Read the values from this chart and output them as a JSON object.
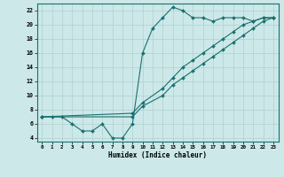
{
  "xlabel": "Humidex (Indice chaleur)",
  "bg_color": "#cce8e8",
  "grid_color": "#b0d0d0",
  "line_color": "#1a7070",
  "xlim": [
    -0.5,
    23.5
  ],
  "ylim": [
    3.5,
    23.0
  ],
  "xticks": [
    0,
    1,
    2,
    3,
    4,
    5,
    6,
    7,
    8,
    9,
    10,
    11,
    12,
    13,
    14,
    15,
    16,
    17,
    18,
    19,
    20,
    21,
    22,
    23
  ],
  "yticks": [
    4,
    6,
    8,
    10,
    12,
    14,
    16,
    18,
    20,
    22
  ],
  "curve1_x": [
    0,
    1,
    2,
    3,
    4,
    5,
    6,
    7,
    8,
    9,
    10,
    11,
    12,
    13,
    14,
    15,
    16,
    17,
    18,
    19,
    20,
    21,
    22,
    23
  ],
  "curve1_y": [
    7.0,
    7.0,
    7.0,
    6.0,
    5.0,
    5.0,
    6.0,
    4.0,
    4.0,
    6.0,
    16.0,
    19.5,
    21.0,
    22.5,
    22.0,
    21.0,
    21.0,
    20.5,
    21.0,
    21.0,
    21.0,
    20.5,
    21.0,
    21.0
  ],
  "curve2_x": [
    0,
    9,
    10,
    12,
    13,
    14,
    15,
    16,
    17,
    18,
    19,
    20,
    21,
    22,
    23
  ],
  "curve2_y": [
    7.0,
    7.5,
    9.0,
    11.0,
    12.5,
    14.0,
    15.0,
    16.0,
    17.0,
    18.0,
    19.0,
    20.0,
    20.5,
    21.0,
    21.0
  ],
  "curve3_x": [
    0,
    9,
    10,
    12,
    13,
    14,
    15,
    16,
    17,
    18,
    19,
    20,
    21,
    22,
    23
  ],
  "curve3_y": [
    7.0,
    7.0,
    8.5,
    10.0,
    11.5,
    12.5,
    13.5,
    14.5,
    15.5,
    16.5,
    17.5,
    18.5,
    19.5,
    20.5,
    21.0
  ]
}
